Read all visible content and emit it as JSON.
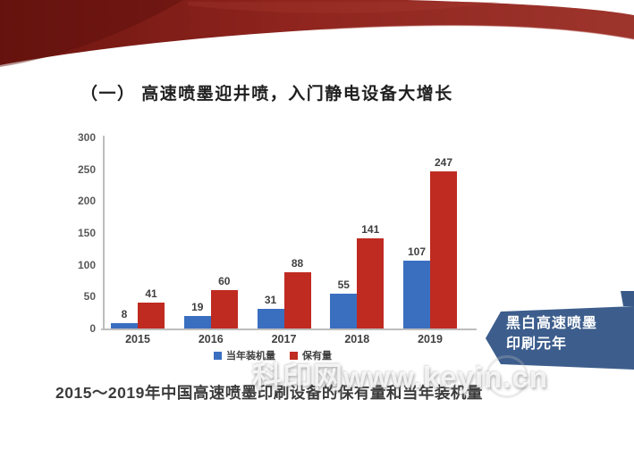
{
  "slide": {
    "title": "（一） 高速喷墨迎井喷，入门静电设备大增长",
    "caption": "2015～2019年中国高速喷墨印刷设备的保有量和当年装机量",
    "watermark": "科印网www.keyin.cn",
    "banner": {
      "line1": "黑白高速喷墨",
      "line2": "印刷元年",
      "color": "#3d5e8d"
    },
    "header_band_colors": [
      "#6e1511",
      "#8e241d",
      "#9e352d"
    ]
  },
  "chart_data": {
    "type": "bar",
    "title": "",
    "xlabel": "",
    "ylabel": "",
    "categories": [
      "2015",
      "2016",
      "2017",
      "2018",
      "2019"
    ],
    "series": [
      {
        "name": "当年装机量",
        "color": "#3a6fc0",
        "values": [
          8,
          19,
          31,
          55,
          107
        ]
      },
      {
        "name": "保有量",
        "color": "#bf2a21",
        "values": [
          41,
          60,
          88,
          141,
          247
        ]
      }
    ],
    "ylim": [
      0,
      300
    ],
    "yticks": [
      0,
      50,
      100,
      150,
      200,
      250,
      300
    ],
    "legend_position": "bottom",
    "grid": false,
    "bar_value_labels": true
  }
}
